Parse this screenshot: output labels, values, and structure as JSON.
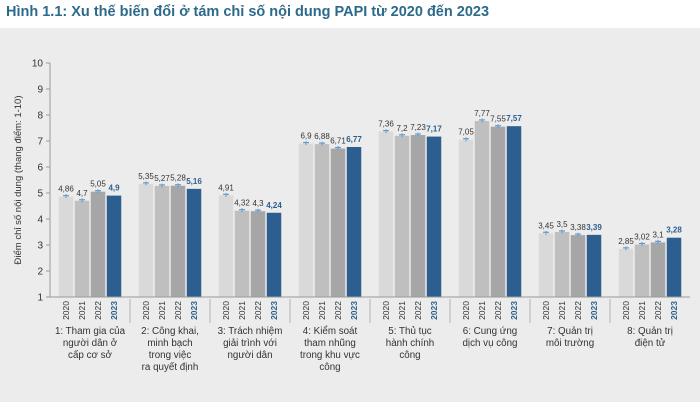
{
  "title": "Hình 1.1: Xu thế biến đổi ở tám chỉ số nội dung PAPI từ 2020 đến 2023",
  "chart_data": {
    "type": "bar",
    "title": "Hình 1.1: Xu thế biến đổi ở tám chỉ số nội dung PAPI từ 2020 đến 2023",
    "ylabel": "Điểm chỉ số nội dung (thang điểm: 1-10)",
    "ylim": [
      1,
      10
    ],
    "yticks": [
      "1",
      "2",
      "3",
      "4",
      "5",
      "6",
      "7",
      "8",
      "9",
      "10"
    ],
    "years": [
      "2020",
      "2021",
      "2022",
      "2023"
    ],
    "categories": [
      "1: Tham gia của người dân ở cấp cơ sở",
      "2: Công khai, minh bạch trong việc ra quyết định",
      "3: Trách nhiệm giải trình với người dân",
      "4: Kiểm soát tham nhũng trong khu vực công",
      "5: Thủ tục hành chính công",
      "6: Cung ứng dịch vụ công",
      "7: Quản trị môi trường",
      "8: Quản trị điện tử"
    ],
    "category_lines": [
      [
        "1: Tham gia của",
        "người dân ở",
        "cấp cơ sở"
      ],
      [
        "2: Công khai,",
        "minh bạch",
        "trong việc",
        "ra quyết định"
      ],
      [
        "3: Trách nhiệm",
        "giải trình với",
        "người dân"
      ],
      [
        "4: Kiểm soát",
        "tham nhũng",
        "trong khu vực",
        "công"
      ],
      [
        "5: Thủ tục",
        "hành chính",
        "công"
      ],
      [
        "6: Cung ứng",
        "dịch vụ công"
      ],
      [
        "7: Quản trị",
        "môi trường"
      ],
      [
        "8: Quản trị",
        "điện tử"
      ]
    ],
    "series": [
      {
        "name": "2020",
        "values": [
          4.86,
          5.35,
          4.91,
          6.9,
          7.36,
          7.05,
          3.45,
          2.85
        ],
        "labels": [
          "4,86",
          "5,35",
          "4,91",
          "6,9",
          "7,36",
          "7,05",
          "3,45",
          "2,85"
        ],
        "color": "#d9d9d9"
      },
      {
        "name": "2021",
        "values": [
          4.7,
          5.27,
          4.32,
          6.88,
          7.2,
          7.77,
          3.5,
          3.02
        ],
        "labels": [
          "4,7",
          "5,27",
          "4,32",
          "6,88",
          "7,2",
          "7,77",
          "3,5",
          "3,02"
        ],
        "color": "#bfbfbf"
      },
      {
        "name": "2022",
        "values": [
          5.05,
          5.28,
          4.3,
          6.71,
          7.23,
          7.55,
          3.38,
          3.1
        ],
        "labels": [
          "5,05",
          "5,28",
          "4,3",
          "6,71",
          "7,23",
          "7,55",
          "3,38",
          "3,1"
        ],
        "color": "#a6a6a6"
      },
      {
        "name": "2023",
        "values": [
          4.9,
          5.16,
          4.24,
          6.77,
          7.17,
          7.57,
          3.39,
          3.28
        ],
        "labels": [
          "4,9",
          "5,16",
          "4,24",
          "6,77",
          "7,17",
          "7,57",
          "3,39",
          "3,28"
        ],
        "color": "#2c5f8f"
      }
    ],
    "highlight_year": "2023",
    "grid": false,
    "error_bars": true,
    "colors": {
      "title": "#2c6a8c",
      "highlight": "#2c5f8f",
      "background": "#ececec",
      "errorbar": "#5b9bd5"
    }
  }
}
